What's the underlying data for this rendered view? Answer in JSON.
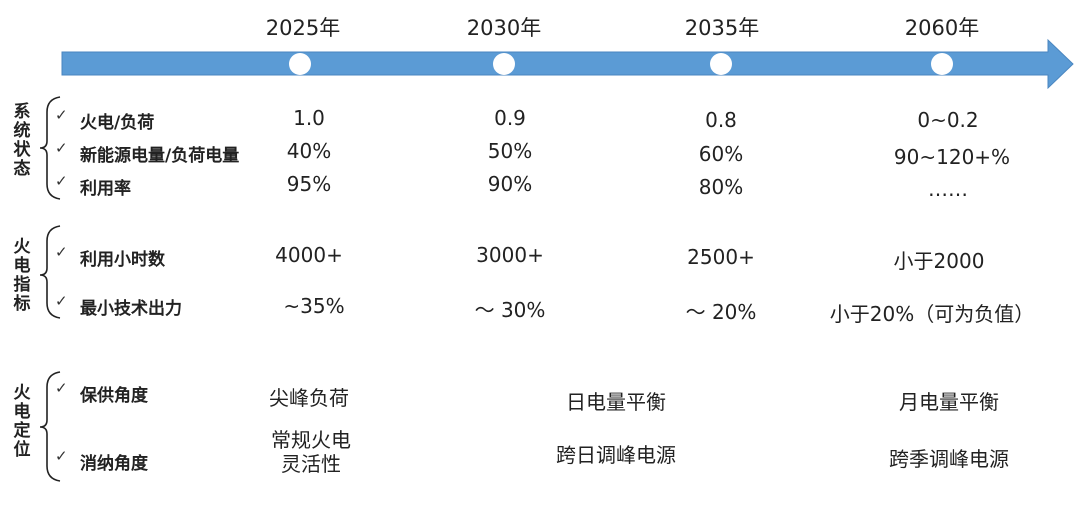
{
  "timeline": {
    "years": [
      "2025年",
      "2030年",
      "2035年",
      "2060年"
    ],
    "arrow_color": "#5b9bd5",
    "marker_color": "#ffffff"
  },
  "groups": [
    {
      "label": "系统状态",
      "rows": [
        {
          "label": "火电/负荷",
          "values": [
            "1.0",
            "0.9",
            "0.8",
            "0~0.2"
          ]
        },
        {
          "label": "新能源电量/负荷电量",
          "values": [
            "40%",
            "50%",
            "60%",
            "90~120+%"
          ]
        },
        {
          "label": "利用率",
          "values": [
            "95%",
            "90%",
            "80%",
            "……"
          ]
        }
      ]
    },
    {
      "label": "火电指标",
      "rows": [
        {
          "label": "利用小时数",
          "values": [
            "4000+",
            "3000+",
            "2500+",
            "小于2000"
          ]
        },
        {
          "label": "最小技术出力",
          "values": [
            "~35%",
            "～ 30%",
            "～ 20%",
            "小于20%（可为负值）"
          ]
        }
      ]
    },
    {
      "label": "火电定位",
      "rows": [
        {
          "label": "保供角度",
          "values": [
            "尖峰负荷",
            "日电量平衡",
            "月电量平衡"
          ]
        },
        {
          "label": "消纳角度",
          "values": [
            "常规火电",
            "灵活性",
            "跨日调峰电源",
            "跨季调峰电源"
          ]
        }
      ]
    }
  ],
  "check_glyph": "✓"
}
